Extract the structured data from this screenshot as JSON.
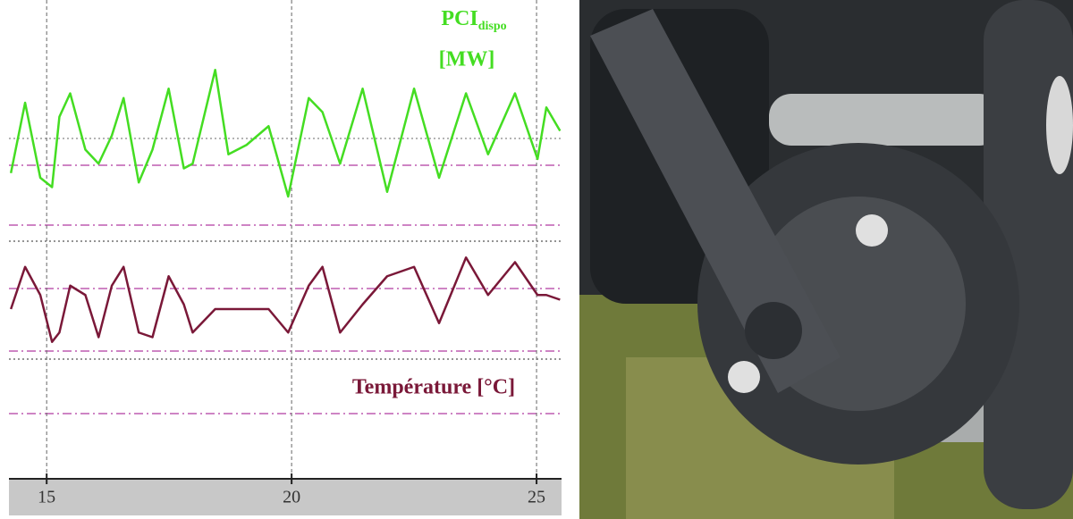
{
  "chart_data": {
    "type": "line",
    "x": [
      14.27,
      14.56,
      14.87,
      15.11,
      15.26,
      15.48,
      15.79,
      16.06,
      16.33,
      16.57,
      16.88,
      17.16,
      17.49,
      17.8,
      17.98,
      18.44,
      18.71,
      19.08,
      19.53,
      19.93,
      20.35,
      20.63,
      20.99,
      21.45,
      21.95,
      22.5,
      23.01,
      23.56,
      24.01,
      24.56,
      25.02,
      25.2,
      25.48
    ],
    "series": [
      {
        "name": "PCI",
        "name_subscript": "dispo",
        "unit": "[MW]",
        "color": "#44dd22",
        "values": [
          65,
          80,
          64,
          62,
          77,
          82,
          70,
          67,
          73,
          81,
          63,
          70,
          83,
          66,
          67,
          87,
          69,
          71,
          75,
          60,
          81,
          78,
          67,
          83,
          61,
          83,
          64,
          82,
          69,
          82,
          68,
          79,
          74
        ]
      },
      {
        "name": "Température [°C]",
        "color": "#7a1838",
        "values": [
          36,
          45,
          39,
          29,
          31,
          41,
          39,
          30,
          41,
          45,
          31,
          30,
          43,
          37,
          31,
          36,
          36,
          36,
          36,
          31,
          41,
          45,
          31,
          37,
          43,
          45,
          33,
          47,
          39,
          46,
          39,
          39,
          38
        ]
      }
    ],
    "xlim": [
      14.23,
      25.51
    ],
    "xticks": [
      15,
      20,
      25
    ],
    "ylim": [
      0,
      100
    ],
    "grid": true
  }
}
